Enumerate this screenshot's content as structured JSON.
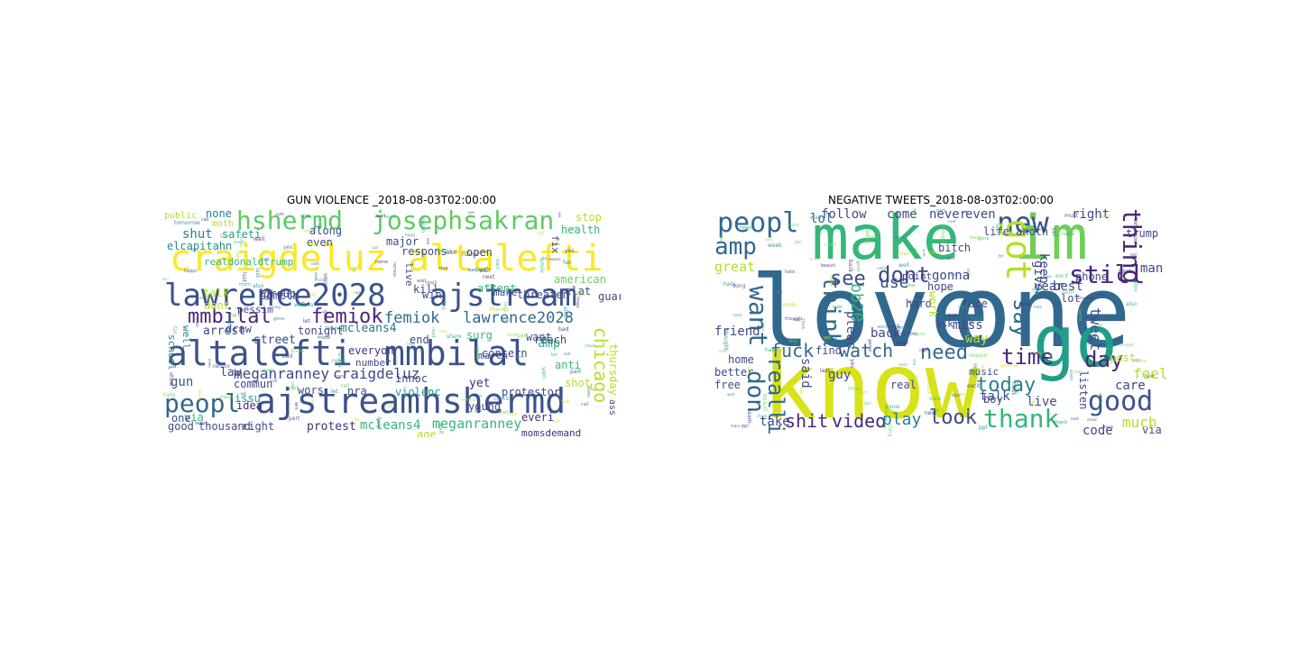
{
  "panels": [
    {
      "title": "GUN VIOLENCE _2018-08-03T02:00:00",
      "words": [
        {
          "t": "craigdeluz",
          "c": "#fde725"
        },
        {
          "t": "altalefti",
          "c": "#fde725"
        },
        {
          "t": "lawrence2028",
          "c": "#3b528b"
        },
        {
          "t": "ajstream",
          "c": "#3b528b"
        },
        {
          "t": "altalefti",
          "c": "#3b528b"
        },
        {
          "t": "mmbilal",
          "c": "#3b528b"
        },
        {
          "t": "ajstream",
          "c": "#3b528b"
        },
        {
          "t": "hshermd",
          "c": "#3b528b"
        },
        {
          "t": "hshermd",
          "c": "#5ec962"
        },
        {
          "t": "josephsakran",
          "c": "#5ec962"
        },
        {
          "t": "mmbilal",
          "c": "#482878"
        },
        {
          "t": "femiok",
          "c": "#482878"
        },
        {
          "t": "femiok",
          "c": "#31688e"
        },
        {
          "t": "lawrence2028",
          "c": "#31688e"
        },
        {
          "t": "peopl",
          "c": "#31688e"
        },
        {
          "t": "meganranney",
          "c": "#3e4989"
        },
        {
          "t": "craigdeluz",
          "c": "#3e4989"
        },
        {
          "t": "mcleans4",
          "c": "#35b779"
        },
        {
          "t": "meganranney",
          "c": "#35b779"
        },
        {
          "t": "chicago",
          "c": "#b5de2b"
        },
        {
          "t": "protest",
          "c": "#472d7b"
        },
        {
          "t": "shut",
          "c": "#26828e"
        },
        {
          "t": "none",
          "c": "#26828e"
        },
        {
          "t": "elcapitahn",
          "c": "#21918c"
        },
        {
          "t": "public",
          "c": "#b5de2b"
        },
        {
          "t": "moth",
          "c": "#b5de2b"
        },
        {
          "t": "safeti",
          "c": "#1f9e89"
        },
        {
          "t": "stop",
          "c": "#b5de2b"
        },
        {
          "t": "health",
          "c": "#35b779"
        },
        {
          "t": "amp",
          "c": "#35b779"
        },
        {
          "t": "american",
          "c": "#6ece58"
        },
        {
          "t": "mcleans4",
          "c": "#2c728e"
        },
        {
          "t": "gun",
          "c": "#3b528b"
        },
        {
          "t": "law",
          "c": "#3e4989"
        },
        {
          "t": "street",
          "c": "#3e4989"
        },
        {
          "t": "arrest",
          "c": "#3e4989"
        },
        {
          "t": "school",
          "c": "#26828e"
        },
        {
          "t": "well",
          "c": "#26828e"
        },
        {
          "t": "good",
          "c": "#3e4989"
        },
        {
          "t": "thousand",
          "c": "#3e4989"
        },
        {
          "t": "right",
          "c": "#3e4989"
        },
        {
          "t": "issu",
          "c": "#1f9e89"
        },
        {
          "t": "idea",
          "c": "#482878"
        },
        {
          "t": "commun",
          "c": "#3e4989"
        },
        {
          "t": "via",
          "c": "#35b779"
        },
        {
          "t": "one",
          "c": "#3e4989"
        },
        {
          "t": "wors",
          "c": "#3e4989"
        },
        {
          "t": "nra",
          "c": "#3e4989"
        },
        {
          "t": "violenc",
          "c": "#1f9e89"
        },
        {
          "t": "innoc",
          "c": "#3e4989"
        },
        {
          "t": "yet",
          "c": "#472d7b"
        },
        {
          "t": "protestor",
          "c": "#3e4989"
        },
        {
          "t": "young",
          "c": "#3e4989"
        },
        {
          "t": "everi",
          "c": "#472d7b"
        },
        {
          "t": "momsdemand",
          "c": "#472d7b"
        },
        {
          "t": "thursday",
          "c": "#b5de2b"
        },
        {
          "t": "shot",
          "c": "#b5de2b"
        },
        {
          "t": "concern",
          "c": "#3e4989"
        },
        {
          "t": "want",
          "c": "#3e4989"
        },
        {
          "t": "anti",
          "c": "#35b779"
        },
        {
          "t": "march",
          "c": "#3e4989"
        },
        {
          "t": "reach",
          "c": "#3e4989"
        },
        {
          "t": "end",
          "c": "#3e4989"
        },
        {
          "t": "surg",
          "c": "#35b779"
        },
        {
          "t": "attent",
          "c": "#35b779"
        },
        {
          "t": "threaten",
          "c": "#3e4989"
        },
        {
          "t": "make",
          "c": "#3e4989"
        },
        {
          "t": "relat",
          "c": "#3e4989"
        },
        {
          "t": "open",
          "c": "#3e4989"
        },
        {
          "t": "major",
          "c": "#3e4989"
        },
        {
          "t": "respons",
          "c": "#3e4989"
        },
        {
          "t": "guard",
          "c": "#3e4989"
        },
        {
          "t": "win",
          "c": "#3e4989"
        },
        {
          "t": "kill",
          "c": "#3e4989"
        },
        {
          "t": "live",
          "c": "#3e4989"
        },
        {
          "t": "talk",
          "c": "#b5de2b"
        },
        {
          "t": "draw",
          "c": "#3e4989"
        },
        {
          "t": "tonight",
          "c": "#3e4989"
        },
        {
          "t": "someth",
          "c": "#3e4989"
        },
        {
          "t": "group",
          "c": "#3e4989"
        },
        {
          "t": "along",
          "c": "#3e4989"
        },
        {
          "t": "even",
          "c": "#3e4989"
        },
        {
          "t": "everyon",
          "c": "#472d7b"
        },
        {
          "t": "number",
          "c": "#3e4989"
        },
        {
          "t": "dont",
          "c": "#b5de2b"
        },
        {
          "t": "age",
          "c": "#b5de2b"
        },
        {
          "t": "ass",
          "c": "#3e4989"
        },
        {
          "t": "fix",
          "c": "#3e4989"
        },
        {
          "t": "realdonaldtrump",
          "c": "#35b779"
        },
        {
          "t": "pessim",
          "c": "#3e4989"
        }
      ]
    },
    {
      "title": "NEGATIVE TWEETS_2018-08-03T02:00:00",
      "words": [
        {
          "t": "love",
          "c": "#31688e"
        },
        {
          "t": "one",
          "c": "#31688e"
        },
        {
          "t": "know",
          "c": "#d8e219"
        },
        {
          "t": "make",
          "c": "#35b779"
        },
        {
          "t": "im",
          "c": "#6ece58"
        },
        {
          "t": "go",
          "c": "#1f9e89"
        },
        {
          "t": "peopl",
          "c": "#31688e"
        },
        {
          "t": "new",
          "c": "#3b528b"
        },
        {
          "t": "got",
          "c": "#b5de2b"
        },
        {
          "t": "still",
          "c": "#482878"
        },
        {
          "t": "thing",
          "c": "#482878"
        },
        {
          "t": "amp",
          "c": "#31688e"
        },
        {
          "t": "want",
          "c": "#31688e"
        },
        {
          "t": "think",
          "c": "#31688e"
        },
        {
          "t": "bb20",
          "c": "#35b779"
        },
        {
          "t": "don",
          "c": "#31688e"
        },
        {
          "t": "realli",
          "c": "#31688e"
        },
        {
          "t": "dont",
          "c": "#3e4989"
        },
        {
          "t": "see",
          "c": "#3e4989"
        },
        {
          "t": "use",
          "c": "#3e4989"
        },
        {
          "t": "say",
          "c": "#31688e"
        },
        {
          "t": "fuck",
          "c": "#31688e"
        },
        {
          "t": "watch",
          "c": "#31688e"
        },
        {
          "t": "need",
          "c": "#31688e"
        },
        {
          "t": "time",
          "c": "#482878"
        },
        {
          "t": "day",
          "c": "#482878"
        },
        {
          "t": "today",
          "c": "#26828e"
        },
        {
          "t": "feel",
          "c": "#b5de2b"
        },
        {
          "t": "thank",
          "c": "#35b779"
        },
        {
          "t": "good",
          "c": "#3b528b"
        },
        {
          "t": "look",
          "c": "#3e4989"
        },
        {
          "t": "shit",
          "c": "#482878"
        },
        {
          "t": "video",
          "c": "#482878"
        },
        {
          "t": "play",
          "c": "#26828e"
        },
        {
          "t": "much",
          "c": "#b5de2b"
        },
        {
          "t": "lol",
          "c": "#31688e"
        },
        {
          "t": "follow",
          "c": "#3e4989"
        },
        {
          "t": "never",
          "c": "#3e4989"
        },
        {
          "t": "even",
          "c": "#3e4989"
        },
        {
          "t": "right",
          "c": "#3e4989"
        },
        {
          "t": "great",
          "c": "#b5de2b"
        },
        {
          "t": "come",
          "c": "#3e4989"
        },
        {
          "t": "gonna",
          "c": "#3e4989"
        },
        {
          "t": "keep",
          "c": "#3e4989"
        },
        {
          "t": "best",
          "c": "#3e4989"
        },
        {
          "t": "year",
          "c": "#3e4989"
        },
        {
          "t": "tweet",
          "c": "#3e4989"
        },
        {
          "t": "man",
          "c": "#3e4989"
        },
        {
          "t": "miss",
          "c": "#3e4989"
        },
        {
          "t": "back",
          "c": "#3e4989"
        },
        {
          "t": "pleas",
          "c": "#3e4989"
        },
        {
          "t": "guy",
          "c": "#3e4989"
        },
        {
          "t": "said",
          "c": "#3e4989"
        },
        {
          "t": "friend",
          "c": "#3e4989"
        },
        {
          "t": "take",
          "c": "#3e4989"
        },
        {
          "t": "talk",
          "c": "#3e4989"
        },
        {
          "t": "live",
          "c": "#3e4989"
        },
        {
          "t": "care",
          "c": "#3e4989"
        },
        {
          "t": "give",
          "c": "#3e4989"
        },
        {
          "t": "way",
          "c": "#b5de2b"
        },
        {
          "t": "via",
          "c": "#3e4989"
        },
        {
          "t": "code",
          "c": "#3e4989"
        },
        {
          "t": "better",
          "c": "#3e4989"
        },
        {
          "t": "free",
          "c": "#3e4989"
        },
        {
          "t": "face",
          "c": "#3e4989"
        },
        {
          "t": "hard",
          "c": "#3e4989"
        },
        {
          "t": "work",
          "c": "#b5de2b"
        },
        {
          "t": "real",
          "c": "#3e4989"
        },
        {
          "t": "find",
          "c": "#3e4989"
        },
        {
          "t": "lot",
          "c": "#3e4989"
        },
        {
          "t": "boy",
          "c": "#3e4989"
        },
        {
          "t": "life",
          "c": "#3e4989"
        },
        {
          "t": "hope",
          "c": "#3e4989"
        },
        {
          "t": "listen",
          "c": "#3e4989"
        },
        {
          "t": "post",
          "c": "#b5de2b"
        },
        {
          "t": "home",
          "c": "#3e4989"
        },
        {
          "t": "phone",
          "c": "#3e4989"
        },
        {
          "t": "trump",
          "c": "#3e4989"
        },
        {
          "t": "bitch",
          "c": "#3e4989"
        },
        {
          "t": "anoth",
          "c": "#3e4989"
        },
        {
          "t": "point",
          "c": "#3e4989"
        },
        {
          "t": "ask",
          "c": "#3e4989"
        },
        {
          "t": "music",
          "c": "#3e4989"
        }
      ]
    }
  ],
  "filler_words": [
    "thank",
    "last",
    "song",
    "gone",
    "fan",
    "wait",
    "via",
    "let",
    "show",
    "game",
    "hate",
    "back",
    "news",
    "next",
    "beauti",
    "mani",
    "check",
    "read",
    "must",
    "tomorrow",
    "even",
    "share",
    "amaz",
    "sorri",
    "god",
    "week",
    "team",
    "call",
    "part",
    "happi",
    "tell",
    "said",
    "nous",
    "ppl",
    "ive",
    "tri",
    "cant",
    "omg",
    "well",
    "smile",
    "yes",
    "mean",
    "sure",
    "stop",
    "help",
    "also",
    "name",
    "bad",
    "start",
    "morn",
    "lmao",
    "thought",
    "excit",
    "noth",
    "remov",
    "babi",
    "win",
    "realli",
    "reason",
    "total"
  ]
}
